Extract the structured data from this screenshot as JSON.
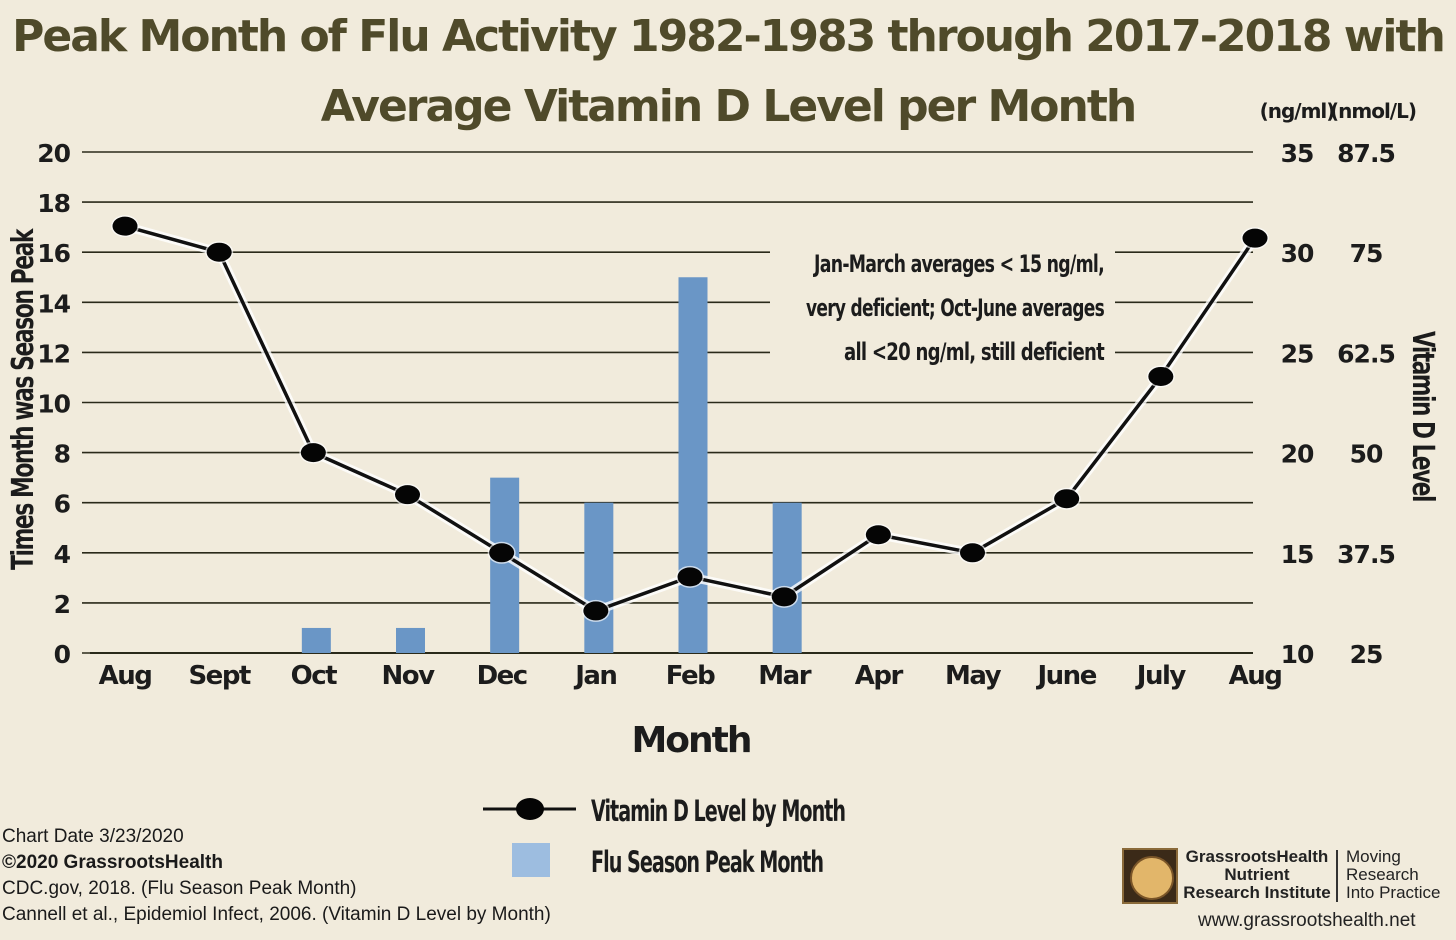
{
  "chart_data": {
    "type": "bar",
    "title": [
      "Peak Month of Flu Activity 1982-1983 through 2017-2018 with",
      "Average Vitamin D Level per Month"
    ],
    "categories": [
      "Aug",
      "Sept",
      "Oct",
      "Nov",
      "Dec",
      "Jan",
      "Feb",
      "Mar",
      "Apr",
      "May",
      "June",
      "July",
      "Aug"
    ],
    "xlabel": "Month",
    "ylabel": "Times Month was Season Peak",
    "ylabel_right": "Vitamin D Level",
    "right_units": [
      "(ng/ml)",
      "(nmol/L)"
    ],
    "ylim": [
      0,
      20
    ],
    "yticks": [
      0,
      2,
      4,
      6,
      8,
      10,
      12,
      14,
      16,
      18,
      20
    ],
    "y2lim": [
      10,
      35
    ],
    "y2ticks_ngml": [
      10,
      15,
      20,
      25,
      30,
      35
    ],
    "y2ticks_nmol": [
      "25",
      "37.5",
      "50",
      "62.5",
      "75",
      "87.5"
    ],
    "grid": true,
    "series": [
      {
        "name": "Flu Season Peak Month",
        "kind": "bar",
        "color": "#6a96c6",
        "values": [
          0,
          0,
          1,
          1,
          7,
          6,
          15,
          6,
          0,
          0,
          0,
          0,
          0
        ]
      },
      {
        "name": "Vitamin D Level by Month",
        "kind": "line",
        "axis": "right",
        "color": "#111111",
        "values": [
          31.3,
          30.0,
          20.0,
          17.9,
          15.0,
          12.1,
          13.8,
          12.8,
          15.9,
          15.0,
          17.7,
          23.8,
          30.7
        ]
      }
    ],
    "annotation": [
      "Jan-March averages < 15 ng/ml,",
      "very deficient; Oct-June averages",
      "all <20 ng/ml, still deficient"
    ],
    "legend_position": "bottom-center"
  },
  "footer": {
    "chart_date": "Chart Date 3/23/2020",
    "copyright": "©2020 GrassrootsHealth",
    "source1": "CDC.gov, 2018.  (Flu Season Peak Month)",
    "source2": "Cannell et al., Epidemiol Infect, 2006.  (Vitamin D Level by Month)"
  },
  "logo": {
    "name": [
      "GrassrootsHealth",
      "Nutrient",
      "Research Institute"
    ],
    "tagline": [
      "Moving",
      "Research",
      "Into Practice"
    ],
    "url": "www.grassrootshealth.net"
  }
}
